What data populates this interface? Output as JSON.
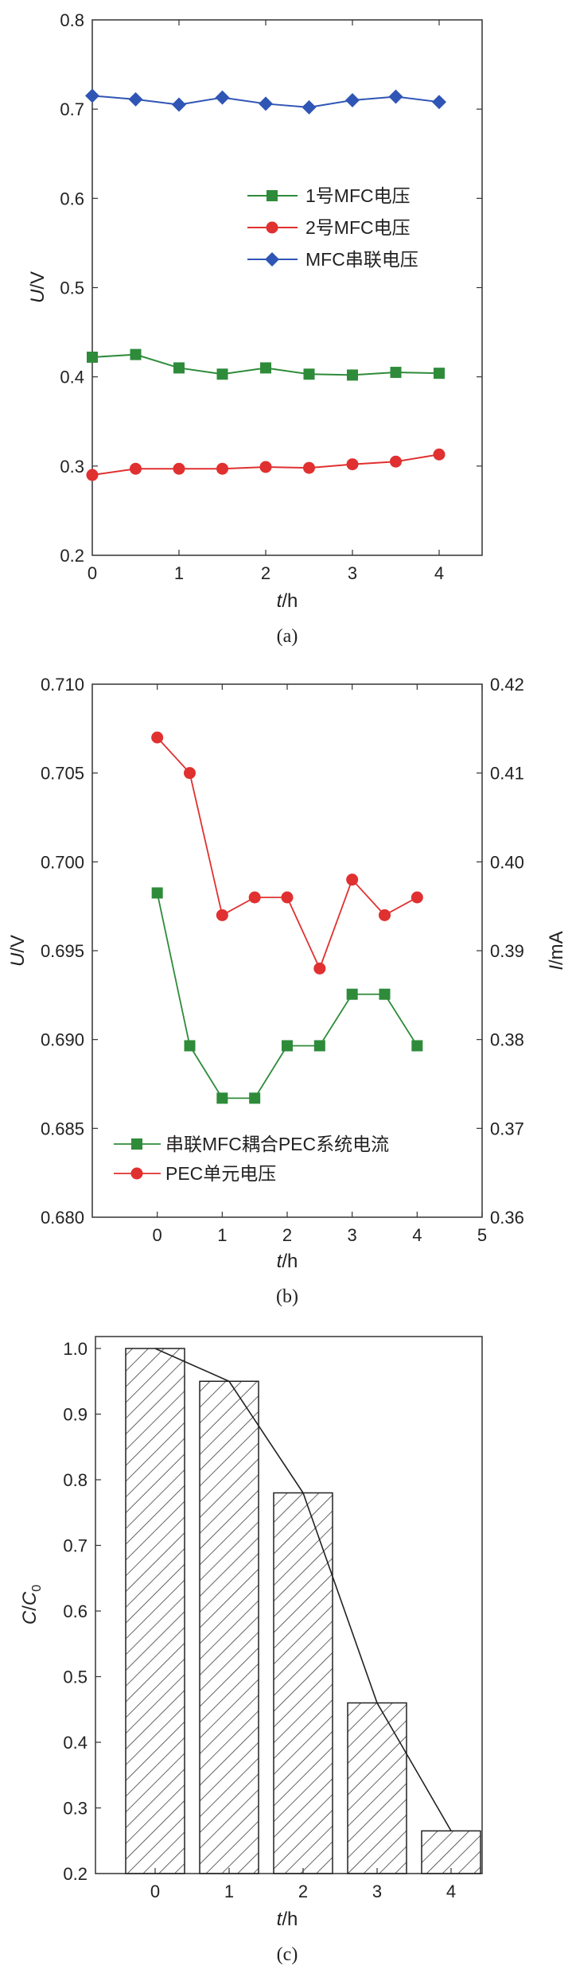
{
  "chart_data": [
    {
      "type": "line",
      "caption": "(a)",
      "xlabel_italic": "t",
      "xlabel_unit": "/h",
      "ylabel_italic": "U",
      "ylabel_unit": "/V",
      "xlim": [
        0,
        4.5
      ],
      "ylim": [
        0.2,
        0.8
      ],
      "xticks": [
        0,
        1,
        2,
        3,
        4
      ],
      "yticks": [
        0.2,
        0.3,
        0.4,
        0.5,
        0.6,
        0.7,
        0.8
      ],
      "legend_position": "right-middle",
      "series": [
        {
          "name": "1号MFC电压",
          "color": "#2e8b3a",
          "marker": "square",
          "x": [
            0,
            0.5,
            1,
            1.5,
            2,
            2.5,
            3,
            3.5,
            4
          ],
          "y": [
            0.422,
            0.425,
            0.41,
            0.403,
            0.41,
            0.403,
            0.402,
            0.405,
            0.404
          ]
        },
        {
          "name": "2号MFC电压",
          "color": "#e03030",
          "marker": "circle",
          "x": [
            0,
            0.5,
            1,
            1.5,
            2,
            2.5,
            3,
            3.5,
            4
          ],
          "y": [
            0.29,
            0.297,
            0.297,
            0.297,
            0.299,
            0.298,
            0.302,
            0.305,
            0.313
          ]
        },
        {
          "name": "MFC串联电压",
          "color": "#2f55b5",
          "marker": "diamond",
          "x": [
            0,
            0.5,
            1,
            1.5,
            2,
            2.5,
            3,
            3.5,
            4
          ],
          "y": [
            0.715,
            0.711,
            0.705,
            0.713,
            0.706,
            0.702,
            0.71,
            0.714,
            0.708
          ]
        }
      ]
    },
    {
      "type": "line",
      "caption": "(b)",
      "xlabel_italic": "t",
      "xlabel_unit": "/h",
      "ylabel_italic": "U",
      "ylabel_unit": "/V",
      "y2label_italic": "I",
      "y2label_unit": "/mA",
      "xlim": [
        -1,
        5
      ],
      "ylim": [
        0.68,
        0.71
      ],
      "y2lim": [
        0.36,
        0.42
      ],
      "xticks": [
        0,
        1,
        2,
        3,
        4,
        5
      ],
      "yticks": [
        "0.680",
        "0.685",
        "0.690",
        "0.695",
        "0.700",
        "0.705",
        "0.710"
      ],
      "y2ticks": [
        "0.36",
        "0.37",
        "0.38",
        "0.39",
        "0.40",
        "0.41",
        "0.42"
      ],
      "legend_position": "bottom-left",
      "series": [
        {
          "name": "串联MFC耦合PEC系统电流",
          "color": "#2e8b3a",
          "marker": "square",
          "axis": "right",
          "x": [
            0,
            0.5,
            1,
            1.5,
            2,
            2.5,
            3,
            3.5,
            4
          ],
          "y": [
            0.3965,
            0.3793,
            0.3734,
            0.3734,
            0.3793,
            0.3793,
            0.3851,
            0.3851,
            0.3793
          ]
        },
        {
          "name": "PEC单元电压",
          "color": "#e03030",
          "marker": "circle",
          "axis": "left",
          "x": [
            0,
            0.5,
            1,
            1.5,
            2,
            2.5,
            3,
            3.5,
            4
          ],
          "y": [
            0.707,
            0.705,
            0.697,
            0.698,
            0.698,
            0.694,
            0.699,
            0.697,
            0.698
          ]
        }
      ]
    },
    {
      "type": "bar",
      "caption": "(c)",
      "xlabel_italic": "t",
      "xlabel_unit": "/h",
      "ylabel_italic": "C",
      "ylabel_sep": "/",
      "ylabel_italic2": "C",
      "ylabel_sub": "0",
      "ylim": [
        0.2,
        1.05
      ],
      "yticks": [
        "0.2",
        "0.3",
        "0.4",
        "0.5",
        "0.6",
        "0.7",
        "0.8",
        "0.9",
        "1.0"
      ],
      "categories": [
        "0",
        "1",
        "2",
        "3",
        "4"
      ],
      "values": [
        1.0,
        0.95,
        0.78,
        0.46,
        0.265
      ],
      "trend_line": true,
      "bar_fill": "diagonal-hatch"
    }
  ]
}
